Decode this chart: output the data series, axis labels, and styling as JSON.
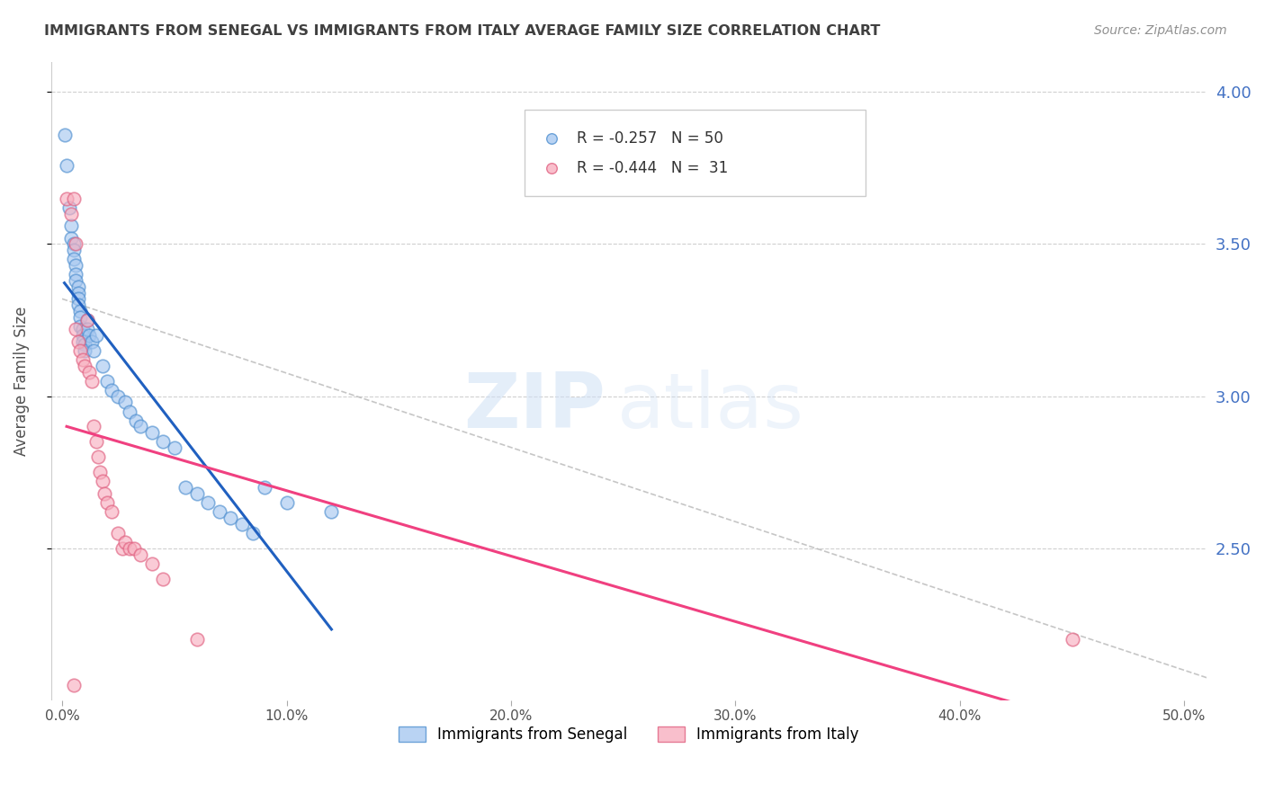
{
  "title": "IMMIGRANTS FROM SENEGAL VS IMMIGRANTS FROM ITALY AVERAGE FAMILY SIZE CORRELATION CHART",
  "source": "Source: ZipAtlas.com",
  "ylabel": "Average Family Size",
  "legend_label1": "Immigrants from Senegal",
  "legend_label2": "Immigrants from Italy",
  "legend_line1_R": "R = -0.257",
  "legend_line1_N": "N = 50",
  "legend_line2_R": "R = -0.444",
  "legend_line2_N": "N =  31",
  "xlim": [
    0.0,
    0.5
  ],
  "ylim": [
    2.0,
    4.1
  ],
  "yticks": [
    2.5,
    3.0,
    3.5,
    4.0
  ],
  "xtick_vals": [
    0.0,
    0.1,
    0.2,
    0.3,
    0.4,
    0.5
  ],
  "xtick_labels": [
    "0.0%",
    "10.0%",
    "20.0%",
    "30.0%",
    "40.0%",
    "50.0%"
  ],
  "color_senegal_fill": "#a8c8f0",
  "color_senegal_edge": "#5090d0",
  "color_italy_fill": "#f8b0c0",
  "color_italy_edge": "#e06080",
  "color_trendline_senegal": "#2060c0",
  "color_trendline_italy": "#f04080",
  "color_dashed": "#b8b8b8",
  "color_right_axis": "#4472c4",
  "color_grid": "#d0d0d0",
  "color_title": "#404040",
  "color_source": "#909090",
  "background_color": "#ffffff",
  "senegal_x": [
    0.001,
    0.002,
    0.003,
    0.004,
    0.004,
    0.005,
    0.005,
    0.005,
    0.006,
    0.006,
    0.006,
    0.007,
    0.007,
    0.007,
    0.007,
    0.008,
    0.008,
    0.008,
    0.009,
    0.009,
    0.009,
    0.01,
    0.01,
    0.011,
    0.011,
    0.012,
    0.013,
    0.014,
    0.015,
    0.018,
    0.02,
    0.022,
    0.025,
    0.028,
    0.03,
    0.033,
    0.035,
    0.04,
    0.045,
    0.05,
    0.055,
    0.06,
    0.065,
    0.07,
    0.075,
    0.08,
    0.085,
    0.09,
    0.1,
    0.12
  ],
  "senegal_y": [
    3.86,
    3.76,
    3.62,
    3.56,
    3.52,
    3.5,
    3.48,
    3.45,
    3.43,
    3.4,
    3.38,
    3.36,
    3.34,
    3.32,
    3.3,
    3.28,
    3.26,
    3.23,
    3.22,
    3.2,
    3.18,
    3.17,
    3.15,
    3.25,
    3.22,
    3.2,
    3.18,
    3.15,
    3.2,
    3.1,
    3.05,
    3.02,
    3.0,
    2.98,
    2.95,
    2.92,
    2.9,
    2.88,
    2.85,
    2.83,
    2.7,
    2.68,
    2.65,
    2.62,
    2.6,
    2.58,
    2.55,
    2.7,
    2.65,
    2.62
  ],
  "italy_x": [
    0.002,
    0.004,
    0.005,
    0.006,
    0.006,
    0.007,
    0.008,
    0.009,
    0.01,
    0.011,
    0.012,
    0.013,
    0.014,
    0.015,
    0.016,
    0.017,
    0.018,
    0.019,
    0.02,
    0.022,
    0.025,
    0.027,
    0.028,
    0.03,
    0.032,
    0.035,
    0.04,
    0.045,
    0.06,
    0.45,
    0.005
  ],
  "italy_y": [
    3.65,
    3.6,
    2.05,
    3.5,
    3.22,
    3.18,
    3.15,
    3.12,
    3.1,
    3.25,
    3.08,
    3.05,
    2.9,
    2.85,
    2.8,
    2.75,
    2.72,
    2.68,
    2.65,
    2.62,
    2.55,
    2.5,
    2.52,
    2.5,
    2.5,
    2.48,
    2.45,
    2.4,
    2.2,
    2.2,
    3.65
  ]
}
